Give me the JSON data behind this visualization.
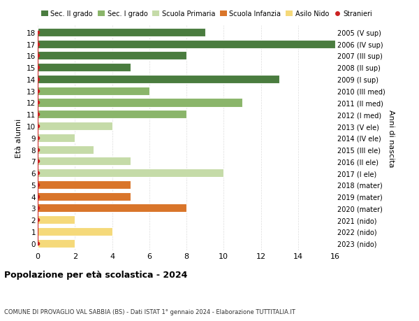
{
  "ages": [
    18,
    17,
    16,
    15,
    14,
    13,
    12,
    11,
    10,
    9,
    8,
    7,
    6,
    5,
    4,
    3,
    2,
    1,
    0
  ],
  "right_labels": [
    "2005 (V sup)",
    "2006 (IV sup)",
    "2007 (III sup)",
    "2008 (II sup)",
    "2009 (I sup)",
    "2010 (III med)",
    "2011 (II med)",
    "2012 (I med)",
    "2013 (V ele)",
    "2014 (IV ele)",
    "2015 (III ele)",
    "2016 (II ele)",
    "2017 (I ele)",
    "2018 (mater)",
    "2019 (mater)",
    "2020 (mater)",
    "2021 (nido)",
    "2022 (nido)",
    "2023 (nido)"
  ],
  "bar_values": [
    9,
    16,
    8,
    5,
    13,
    6,
    11,
    8,
    4,
    2,
    3,
    5,
    10,
    5,
    5,
    8,
    2,
    4,
    2
  ],
  "bar_colors": [
    "#4a7c3f",
    "#4a7c3f",
    "#4a7c3f",
    "#4a7c3f",
    "#4a7c3f",
    "#8ab56a",
    "#8ab56a",
    "#8ab56a",
    "#c5dba8",
    "#c5dba8",
    "#c5dba8",
    "#c5dba8",
    "#c5dba8",
    "#d9752a",
    "#d9752a",
    "#d9752a",
    "#f5d97a",
    "#f5d97a",
    "#f5d97a"
  ],
  "stranieri_line_ages": [
    18,
    17,
    16,
    15,
    14,
    13,
    12,
    11,
    10,
    9,
    8,
    7,
    6,
    5,
    4,
    3,
    2,
    1,
    0
  ],
  "stranieri_dot_ages": [
    18,
    17,
    16,
    15,
    14,
    13,
    12,
    11,
    10,
    9,
    8,
    7,
    6,
    5,
    4,
    3,
    2,
    0
  ],
  "legend_labels": [
    "Sec. II grado",
    "Sec. I grado",
    "Scuola Primaria",
    "Scuola Infanzia",
    "Asilo Nido",
    "Stranieri"
  ],
  "legend_colors": [
    "#4a7c3f",
    "#8ab56a",
    "#c5dba8",
    "#d9752a",
    "#f5d97a",
    "#cc2222"
  ],
  "ylabel": "Età alunni",
  "right_ylabel": "Anni di nascita",
  "title": "Popolazione per età scolastica - 2024",
  "subtitle": "COMUNE DI PROVAGLIO VAL SABBIA (BS) - Dati ISTAT 1° gennaio 2024 - Elaborazione TUTTITALIA.IT",
  "xlim": [
    0,
    16
  ],
  "xticks": [
    0,
    2,
    4,
    6,
    8,
    10,
    12,
    14,
    16
  ],
  "background_color": "#ffffff",
  "grid_color": "#dddddd"
}
